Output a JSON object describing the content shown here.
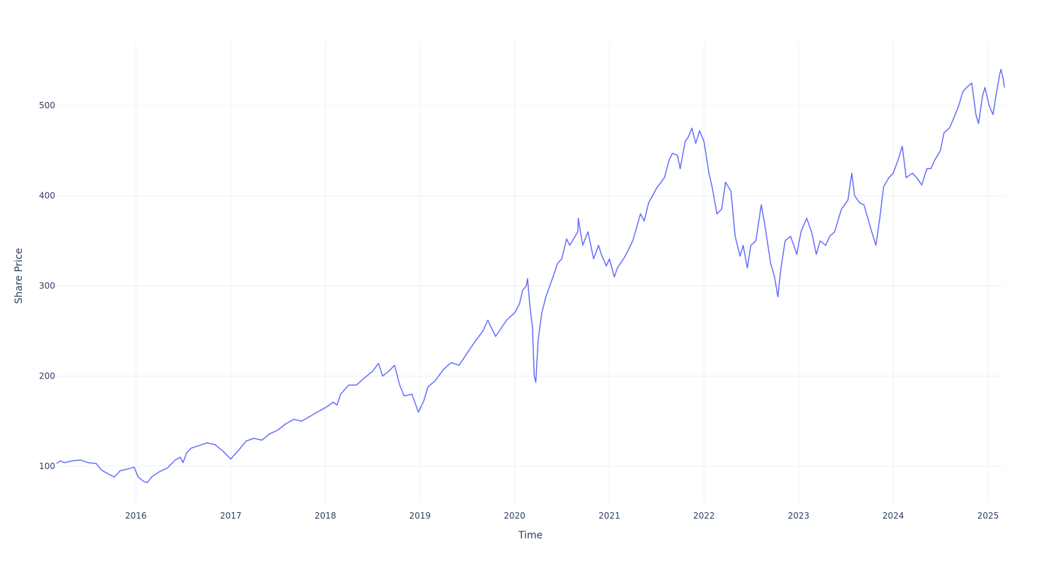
{
  "chart_data": {
    "type": "line",
    "xlabel": "Time",
    "ylabel": "Share Price",
    "x_range": [
      "2015-03-01",
      "2025-03-05"
    ],
    "ylim": [
      60,
      570
    ],
    "x_ticks": [
      {
        "date": "2016-01-01",
        "label": "2016"
      },
      {
        "date": "2017-01-01",
        "label": "2017"
      },
      {
        "date": "2018-01-01",
        "label": "2018"
      },
      {
        "date": "2019-01-01",
        "label": "2019"
      },
      {
        "date": "2020-01-01",
        "label": "2020"
      },
      {
        "date": "2021-01-01",
        "label": "2021"
      },
      {
        "date": "2022-01-01",
        "label": "2022"
      },
      {
        "date": "2023-01-01",
        "label": "2023"
      },
      {
        "date": "2024-01-01",
        "label": "2024"
      },
      {
        "date": "2025-01-01",
        "label": "2025"
      }
    ],
    "y_ticks": [
      100,
      200,
      300,
      400,
      500
    ],
    "grid": true,
    "series": [
      {
        "color": "#636efa",
        "points": [
          [
            "2015-03-01",
            103
          ],
          [
            "2015-03-15",
            106
          ],
          [
            "2015-04-01",
            104
          ],
          [
            "2015-05-01",
            106
          ],
          [
            "2015-06-01",
            107
          ],
          [
            "2015-07-01",
            104
          ],
          [
            "2015-08-01",
            103
          ],
          [
            "2015-08-20",
            96
          ],
          [
            "2015-09-01",
            94
          ],
          [
            "2015-09-20",
            91
          ],
          [
            "2015-10-10",
            88
          ],
          [
            "2015-11-01",
            95
          ],
          [
            "2015-12-01",
            97
          ],
          [
            "2015-12-25",
            99
          ],
          [
            "2016-01-10",
            88
          ],
          [
            "2016-02-01",
            83
          ],
          [
            "2016-02-15",
            82
          ],
          [
            "2016-03-01",
            88
          ],
          [
            "2016-04-01",
            94
          ],
          [
            "2016-05-01",
            98
          ],
          [
            "2016-06-01",
            107
          ],
          [
            "2016-06-20",
            110
          ],
          [
            "2016-07-01",
            104
          ],
          [
            "2016-07-15",
            115
          ],
          [
            "2016-08-01",
            120
          ],
          [
            "2016-09-01",
            123
          ],
          [
            "2016-10-01",
            126
          ],
          [
            "2016-11-01",
            124
          ],
          [
            "2016-12-01",
            117
          ],
          [
            "2017-01-01",
            108
          ],
          [
            "2017-02-01",
            118
          ],
          [
            "2017-03-01",
            128
          ],
          [
            "2017-04-01",
            131
          ],
          [
            "2017-05-01",
            129
          ],
          [
            "2017-06-01",
            136
          ],
          [
            "2017-07-01",
            140
          ],
          [
            "2017-08-01",
            147
          ],
          [
            "2017-09-01",
            152
          ],
          [
            "2017-10-01",
            150
          ],
          [
            "2017-11-01",
            155
          ],
          [
            "2017-12-01",
            160
          ],
          [
            "2018-01-01",
            165
          ],
          [
            "2018-02-01",
            171
          ],
          [
            "2018-02-15",
            168
          ],
          [
            "2018-03-01",
            180
          ],
          [
            "2018-04-01",
            190
          ],
          [
            "2018-05-01",
            190
          ],
          [
            "2018-06-01",
            198
          ],
          [
            "2018-07-01",
            205
          ],
          [
            "2018-07-25",
            214
          ],
          [
            "2018-08-10",
            200
          ],
          [
            "2018-09-01",
            205
          ],
          [
            "2018-09-25",
            212
          ],
          [
            "2018-10-15",
            190
          ],
          [
            "2018-11-01",
            178
          ],
          [
            "2018-12-01",
            180
          ],
          [
            "2018-12-26",
            160
          ],
          [
            "2019-01-15",
            172
          ],
          [
            "2019-02-01",
            188
          ],
          [
            "2019-03-01",
            195
          ],
          [
            "2019-04-01",
            207
          ],
          [
            "2019-05-01",
            215
          ],
          [
            "2019-06-01",
            212
          ],
          [
            "2019-07-01",
            225
          ],
          [
            "2019-08-01",
            238
          ],
          [
            "2019-09-01",
            250
          ],
          [
            "2019-09-20",
            262
          ],
          [
            "2019-10-01",
            255
          ],
          [
            "2019-10-20",
            244
          ],
          [
            "2019-11-15",
            255
          ],
          [
            "2019-12-01",
            262
          ],
          [
            "2020-01-01",
            270
          ],
          [
            "2020-01-20",
            280
          ],
          [
            "2020-02-01",
            295
          ],
          [
            "2020-02-15",
            300
          ],
          [
            "2020-02-20",
            308
          ],
          [
            "2020-03-01",
            275
          ],
          [
            "2020-03-10",
            255
          ],
          [
            "2020-03-17",
            200
          ],
          [
            "2020-03-23",
            193
          ],
          [
            "2020-04-01",
            240
          ],
          [
            "2020-04-15",
            270
          ],
          [
            "2020-05-01",
            288
          ],
          [
            "2020-06-01",
            313
          ],
          [
            "2020-06-15",
            325
          ],
          [
            "2020-07-01",
            330
          ],
          [
            "2020-07-20",
            352
          ],
          [
            "2020-08-01",
            345
          ],
          [
            "2020-09-01",
            360
          ],
          [
            "2020-09-03",
            375
          ],
          [
            "2020-09-20",
            345
          ],
          [
            "2020-10-10",
            360
          ],
          [
            "2020-11-01",
            330
          ],
          [
            "2020-11-20",
            345
          ],
          [
            "2020-12-01",
            335
          ],
          [
            "2020-12-20",
            322
          ],
          [
            "2021-01-01",
            330
          ],
          [
            "2021-01-20",
            310
          ],
          [
            "2021-02-01",
            320
          ],
          [
            "2021-03-01",
            332
          ],
          [
            "2021-04-01",
            350
          ],
          [
            "2021-05-01",
            380
          ],
          [
            "2021-05-15",
            372
          ],
          [
            "2021-06-01",
            392
          ],
          [
            "2021-07-01",
            408
          ],
          [
            "2021-08-01",
            420
          ],
          [
            "2021-08-20",
            440
          ],
          [
            "2021-09-01",
            447
          ],
          [
            "2021-09-20",
            445
          ],
          [
            "2021-10-01",
            430
          ],
          [
            "2021-10-20",
            460
          ],
          [
            "2021-11-01",
            465
          ],
          [
            "2021-11-15",
            475
          ],
          [
            "2021-11-30",
            458
          ],
          [
            "2021-12-15",
            472
          ],
          [
            "2022-01-01",
            460
          ],
          [
            "2022-01-20",
            425
          ],
          [
            "2022-02-01",
            410
          ],
          [
            "2022-02-20",
            380
          ],
          [
            "2022-03-10",
            385
          ],
          [
            "2022-03-25",
            415
          ],
          [
            "2022-04-15",
            405
          ],
          [
            "2022-05-01",
            355
          ],
          [
            "2022-05-20",
            333
          ],
          [
            "2022-06-01",
            345
          ],
          [
            "2022-06-17",
            320
          ],
          [
            "2022-07-01",
            345
          ],
          [
            "2022-07-20",
            350
          ],
          [
            "2022-08-10",
            390
          ],
          [
            "2022-08-25",
            365
          ],
          [
            "2022-09-15",
            325
          ],
          [
            "2022-09-30",
            310
          ],
          [
            "2022-10-13",
            288
          ],
          [
            "2022-10-25",
            320
          ],
          [
            "2022-11-10",
            350
          ],
          [
            "2022-12-01",
            355
          ],
          [
            "2022-12-25",
            335
          ],
          [
            "2023-01-10",
            360
          ],
          [
            "2023-02-01",
            375
          ],
          [
            "2023-02-20",
            360
          ],
          [
            "2023-03-10",
            335
          ],
          [
            "2023-03-25",
            350
          ],
          [
            "2023-04-15",
            345
          ],
          [
            "2023-05-01",
            355
          ],
          [
            "2023-05-20",
            360
          ],
          [
            "2023-06-15",
            385
          ],
          [
            "2023-07-10",
            395
          ],
          [
            "2023-07-25",
            425
          ],
          [
            "2023-08-05",
            400
          ],
          [
            "2023-08-25",
            392
          ],
          [
            "2023-09-10",
            390
          ],
          [
            "2023-09-25",
            375
          ],
          [
            "2023-10-10",
            360
          ],
          [
            "2023-10-26",
            345
          ],
          [
            "2023-11-10",
            375
          ],
          [
            "2023-11-25",
            410
          ],
          [
            "2023-12-15",
            420
          ],
          [
            "2024-01-01",
            425
          ],
          [
            "2024-01-20",
            440
          ],
          [
            "2024-02-05",
            455
          ],
          [
            "2024-02-20",
            420
          ],
          [
            "2024-03-15",
            425
          ],
          [
            "2024-04-01",
            420
          ],
          [
            "2024-04-20",
            412
          ],
          [
            "2024-05-10",
            430
          ],
          [
            "2024-05-25",
            430
          ],
          [
            "2024-06-10",
            440
          ],
          [
            "2024-07-01",
            450
          ],
          [
            "2024-07-15",
            470
          ],
          [
            "2024-08-05",
            475
          ],
          [
            "2024-08-20",
            485
          ],
          [
            "2024-09-10",
            500
          ],
          [
            "2024-09-25",
            515
          ],
          [
            "2024-10-10",
            520
          ],
          [
            "2024-10-30",
            525
          ],
          [
            "2024-11-15",
            490
          ],
          [
            "2024-11-25",
            480
          ],
          [
            "2024-12-10",
            510
          ],
          [
            "2024-12-20",
            520
          ],
          [
            "2025-01-05",
            500
          ],
          [
            "2025-01-20",
            490
          ],
          [
            "2025-02-01",
            512
          ],
          [
            "2025-02-15",
            535
          ],
          [
            "2025-02-20",
            540
          ],
          [
            "2025-02-28",
            530
          ],
          [
            "2025-03-05",
            520
          ]
        ]
      }
    ]
  }
}
